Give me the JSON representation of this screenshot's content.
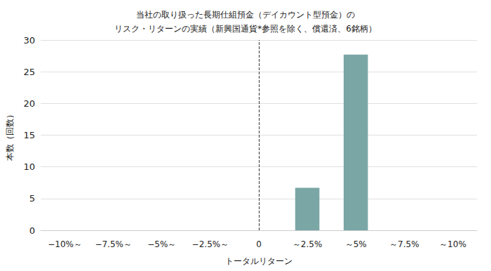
{
  "chart_data": {
    "type": "bar",
    "title": "当社の取り扱った長期仕組預金（デイカウント型預金）の\nリスク・リターンの実績（新興国通貨*参照を除く、償還済、6銘柄）",
    "x_label": "トータルリターン",
    "y_label": "本数（回数）",
    "categories": [
      "−10%～",
      "−7.5%～",
      "−5%～",
      "−2.5%～",
      "0",
      "～2.5%",
      "～5%",
      "～7.5%",
      "～10%"
    ],
    "values": [
      0,
      0,
      0,
      0,
      0,
      6.7,
      27.7,
      0,
      0
    ],
    "color": "#7aa6a6",
    "ylim": [
      0,
      30
    ],
    "yticks": [
      0,
      5,
      10,
      15,
      20,
      25,
      30
    ],
    "grid": true,
    "vline": "0"
  }
}
